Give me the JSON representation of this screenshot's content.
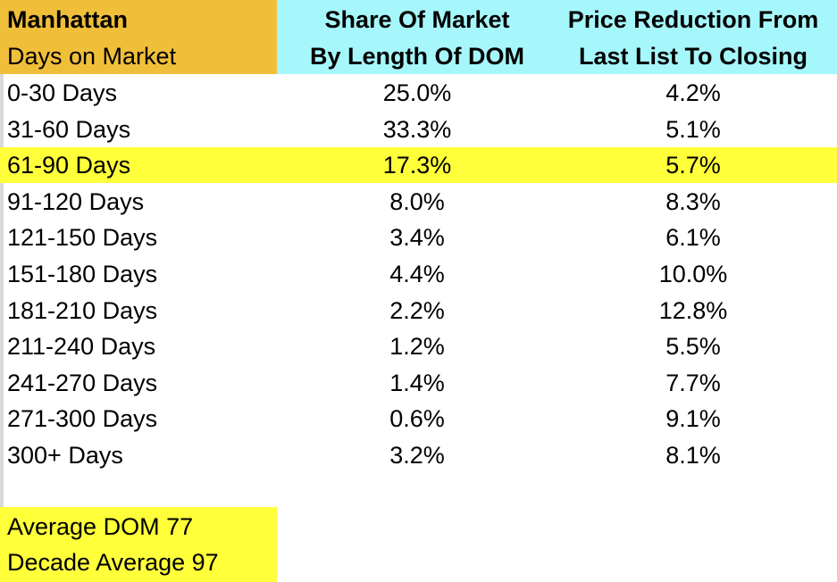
{
  "header": {
    "title": "Manhattan",
    "subtitle": "Days on Market",
    "col2_line1": "Share Of Market",
    "col2_line2": "By Length Of DOM",
    "col3_line1": "Price Reduction From",
    "col3_line2": "Last List To Closing"
  },
  "colors": {
    "header_left": "#f0bf3a",
    "header_right": "#a6f7fb",
    "highlight": "#ffff3a"
  },
  "chart_data": {
    "type": "table",
    "columns": [
      "Days on Market",
      "Share Of Market By Length Of DOM",
      "Price Reduction From Last List To Closing"
    ],
    "rows": [
      {
        "range": "0-30 Days",
        "share": "25.0%",
        "reduction": "4.2%",
        "highlight": false
      },
      {
        "range": "31-60 Days",
        "share": "33.3%",
        "reduction": "5.1%",
        "highlight": false
      },
      {
        "range": "61-90 Days",
        "share": "17.3%",
        "reduction": "5.7%",
        "highlight": true
      },
      {
        "range": "91-120 Days",
        "share": "8.0%",
        "reduction": "8.3%",
        "highlight": false
      },
      {
        "range": "121-150 Days",
        "share": "3.4%",
        "reduction": "6.1%",
        "highlight": false
      },
      {
        "range": "151-180 Days",
        "share": "4.4%",
        "reduction": "10.0%",
        "highlight": false
      },
      {
        "range": "181-210 Days",
        "share": "2.2%",
        "reduction": "12.8%",
        "highlight": false
      },
      {
        "range": "211-240 Days",
        "share": "1.2%",
        "reduction": "5.5%",
        "highlight": false
      },
      {
        "range": "241-270 Days",
        "share": "1.4%",
        "reduction": "7.7%",
        "highlight": false
      },
      {
        "range": "271-300 Days",
        "share": "0.6%",
        "reduction": "9.1%",
        "highlight": false
      },
      {
        "range": "300+ Days",
        "share": "3.2%",
        "reduction": "8.1%",
        "highlight": false
      }
    ]
  },
  "summary": {
    "average_dom": "Average DOM 77",
    "decade_average": "Decade Average 97"
  }
}
